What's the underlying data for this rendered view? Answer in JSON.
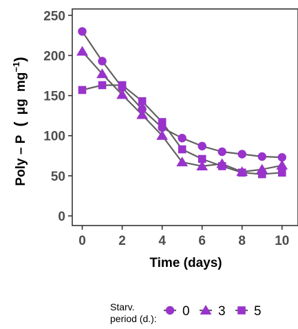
{
  "chart_data": {
    "type": "line",
    "xlabel": "Time (days)",
    "ylabel": {
      "main": "Poly – P",
      "paren_open": "(",
      "unit_a": "μg",
      "unit_b": "mg",
      "exponent": "−1",
      "paren_close": ")"
    },
    "xlim": [
      -0.5,
      10.8
    ],
    "ylim": [
      -12,
      258
    ],
    "x_ticks": [
      0,
      2,
      4,
      6,
      8,
      10
    ],
    "y_ticks": [
      0,
      50,
      100,
      150,
      200,
      250
    ],
    "grid": false,
    "legend_placement": "bottom",
    "legend_title": [
      "Starv.",
      "period (d.):"
    ],
    "colors": {
      "line": "#616161",
      "marker": "#9933cc",
      "axis": "#333333",
      "tick_text": "#4d4d4d"
    },
    "x": [
      0,
      1,
      2,
      3,
      4,
      5,
      6,
      7,
      8,
      9,
      10
    ],
    "series": [
      {
        "name": "0",
        "marker": "circle",
        "values": [
          230,
          193,
          160,
          133,
          110,
          97,
          87,
          80,
          77,
          74,
          73
        ]
      },
      {
        "name": "3",
        "marker": "triangle",
        "values": [
          205,
          177,
          151,
          126,
          100,
          67,
          62,
          65,
          55,
          58,
          63
        ]
      },
      {
        "name": "5",
        "marker": "square",
        "values": [
          157,
          163,
          163,
          143,
          117,
          83,
          71,
          62,
          54,
          52,
          54
        ]
      }
    ]
  }
}
